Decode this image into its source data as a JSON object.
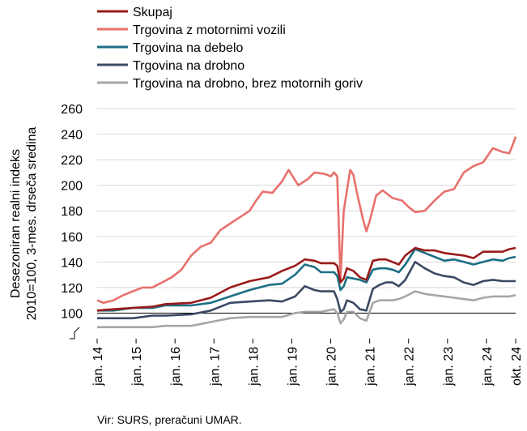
{
  "chart_data": {
    "type": "line",
    "ylabel": "Desezoniran realni indeks\n2010=100, 3-mes. drseča sredina",
    "source": "Vir: SURS, preračuni UMAR.",
    "ylim": [
      80,
      260
    ],
    "yticks": [
      100,
      120,
      140,
      160,
      180,
      200,
      220,
      240,
      260
    ],
    "y_axis_break": true,
    "x_start": "2014-01",
    "x_end": "2024-10",
    "xtick_labels": [
      "jan. 14",
      "jan. 15",
      "jan. 16",
      "jan. 17",
      "jan. 18",
      "jan. 19",
      "jan. 20",
      "jan. 21",
      "jan. 22",
      "jan. 23",
      "jan. 24",
      "okt. 24"
    ],
    "reference_line": 100,
    "grid": "horizontal",
    "legend_position": "top",
    "series": [
      {
        "name": "Skupaj",
        "color": "#9b1b1b",
        "points": [
          [
            "2014-01",
            102
          ],
          [
            "2014-06",
            103
          ],
          [
            "2014-12",
            104
          ],
          [
            "2015-06",
            105
          ],
          [
            "2015-10",
            107
          ],
          [
            "2016-06",
            108
          ],
          [
            "2016-12",
            112
          ],
          [
            "2017-06",
            120
          ],
          [
            "2017-12",
            125
          ],
          [
            "2018-06",
            128
          ],
          [
            "2018-10",
            133
          ],
          [
            "2019-02",
            137
          ],
          [
            "2019-05",
            142
          ],
          [
            "2019-08",
            141
          ],
          [
            "2019-10",
            139
          ],
          [
            "2020-02",
            139
          ],
          [
            "2020-03",
            137
          ],
          [
            "2020-04",
            124
          ],
          [
            "2020-05",
            127
          ],
          [
            "2020-06",
            135
          ],
          [
            "2020-08",
            133
          ],
          [
            "2020-10",
            128
          ],
          [
            "2020-12",
            126
          ],
          [
            "2021-02",
            141
          ],
          [
            "2021-04",
            142
          ],
          [
            "2021-06",
            142
          ],
          [
            "2021-08",
            140
          ],
          [
            "2021-10",
            138
          ],
          [
            "2021-12",
            145
          ],
          [
            "2022-03",
            151
          ],
          [
            "2022-06",
            149
          ],
          [
            "2022-09",
            149
          ],
          [
            "2022-12",
            147
          ],
          [
            "2023-03",
            146
          ],
          [
            "2023-06",
            145
          ],
          [
            "2023-09",
            143
          ],
          [
            "2023-12",
            148
          ],
          [
            "2024-03",
            148
          ],
          [
            "2024-06",
            148
          ],
          [
            "2024-08",
            150
          ],
          [
            "2024-10",
            151
          ]
        ]
      },
      {
        "name": "Trgovina z motornimi vozili",
        "color": "#e8706c",
        "points": [
          [
            "2014-01",
            110
          ],
          [
            "2014-03",
            108
          ],
          [
            "2014-06",
            110
          ],
          [
            "2014-09",
            114
          ],
          [
            "2014-12",
            117
          ],
          [
            "2015-03",
            120
          ],
          [
            "2015-06",
            120
          ],
          [
            "2015-09",
            124
          ],
          [
            "2015-12",
            128
          ],
          [
            "2016-03",
            134
          ],
          [
            "2016-06",
            145
          ],
          [
            "2016-09",
            152
          ],
          [
            "2016-12",
            155
          ],
          [
            "2017-03",
            165
          ],
          [
            "2017-06",
            170
          ],
          [
            "2017-09",
            175
          ],
          [
            "2017-12",
            180
          ],
          [
            "2018-02",
            188
          ],
          [
            "2018-04",
            195
          ],
          [
            "2018-07",
            194
          ],
          [
            "2018-10",
            203
          ],
          [
            "2018-12",
            212
          ],
          [
            "2019-03",
            200
          ],
          [
            "2019-06",
            205
          ],
          [
            "2019-08",
            210
          ],
          [
            "2019-11",
            209
          ],
          [
            "2020-01",
            207
          ],
          [
            "2020-02",
            210
          ],
          [
            "2020-03",
            207
          ],
          [
            "2020-04",
            126
          ],
          [
            "2020-05",
            180
          ],
          [
            "2020-07",
            212
          ],
          [
            "2020-08",
            208
          ],
          [
            "2020-09",
            195
          ],
          [
            "2020-11",
            173
          ],
          [
            "2020-12",
            164
          ],
          [
            "2021-01",
            172
          ],
          [
            "2021-03",
            192
          ],
          [
            "2021-05",
            196
          ],
          [
            "2021-08",
            190
          ],
          [
            "2021-11",
            188
          ],
          [
            "2022-01",
            183
          ],
          [
            "2022-03",
            179
          ],
          [
            "2022-06",
            180
          ],
          [
            "2022-09",
            188
          ],
          [
            "2022-12",
            195
          ],
          [
            "2023-03",
            197
          ],
          [
            "2023-06",
            210
          ],
          [
            "2023-09",
            215
          ],
          [
            "2023-12",
            218
          ],
          [
            "2024-03",
            229
          ],
          [
            "2024-06",
            226
          ],
          [
            "2024-08",
            225
          ],
          [
            "2024-09",
            231
          ],
          [
            "2024-10",
            238
          ]
        ]
      },
      {
        "name": "Trgovina na debelo",
        "color": "#1b6f84",
        "points": [
          [
            "2014-01",
            102
          ],
          [
            "2014-06",
            102
          ],
          [
            "2014-12",
            104
          ],
          [
            "2015-06",
            104
          ],
          [
            "2015-10",
            106
          ],
          [
            "2016-06",
            106
          ],
          [
            "2016-12",
            108
          ],
          [
            "2017-06",
            113
          ],
          [
            "2017-12",
            118
          ],
          [
            "2018-06",
            122
          ],
          [
            "2018-10",
            123
          ],
          [
            "2019-02",
            130
          ],
          [
            "2019-05",
            138
          ],
          [
            "2019-08",
            136
          ],
          [
            "2019-10",
            132
          ],
          [
            "2020-02",
            132
          ],
          [
            "2020-03",
            129
          ],
          [
            "2020-04",
            118
          ],
          [
            "2020-05",
            121
          ],
          [
            "2020-06",
            128
          ],
          [
            "2020-08",
            127
          ],
          [
            "2020-10",
            126
          ],
          [
            "2020-12",
            124
          ],
          [
            "2021-02",
            134
          ],
          [
            "2021-04",
            135
          ],
          [
            "2021-06",
            135
          ],
          [
            "2021-08",
            134
          ],
          [
            "2021-10",
            132
          ],
          [
            "2021-12",
            138
          ],
          [
            "2022-03",
            150
          ],
          [
            "2022-06",
            147
          ],
          [
            "2022-09",
            144
          ],
          [
            "2022-12",
            141
          ],
          [
            "2023-03",
            142
          ],
          [
            "2023-06",
            140
          ],
          [
            "2023-09",
            138
          ],
          [
            "2023-12",
            140
          ],
          [
            "2024-03",
            142
          ],
          [
            "2024-06",
            141
          ],
          [
            "2024-08",
            143
          ],
          [
            "2024-10",
            144
          ]
        ]
      },
      {
        "name": "Trgovina na drobno",
        "color": "#3b4a63",
        "points": [
          [
            "2014-01",
            96
          ],
          [
            "2014-06",
            96
          ],
          [
            "2014-12",
            96
          ],
          [
            "2015-06",
            98
          ],
          [
            "2015-10",
            98
          ],
          [
            "2016-06",
            99
          ],
          [
            "2016-12",
            102
          ],
          [
            "2017-06",
            108
          ],
          [
            "2017-12",
            109
          ],
          [
            "2018-06",
            110
          ],
          [
            "2018-10",
            109
          ],
          [
            "2019-02",
            113
          ],
          [
            "2019-05",
            121
          ],
          [
            "2019-08",
            118
          ],
          [
            "2019-10",
            117
          ],
          [
            "2020-02",
            117
          ],
          [
            "2020-03",
            111
          ],
          [
            "2020-04",
            101
          ],
          [
            "2020-05",
            103
          ],
          [
            "2020-06",
            110
          ],
          [
            "2020-08",
            108
          ],
          [
            "2020-10",
            103
          ],
          [
            "2020-12",
            102
          ],
          [
            "2021-02",
            119
          ],
          [
            "2021-04",
            122
          ],
          [
            "2021-06",
            124
          ],
          [
            "2021-08",
            124
          ],
          [
            "2021-10",
            121
          ],
          [
            "2021-12",
            126
          ],
          [
            "2022-03",
            140
          ],
          [
            "2022-06",
            135
          ],
          [
            "2022-09",
            131
          ],
          [
            "2022-12",
            129
          ],
          [
            "2023-03",
            128
          ],
          [
            "2023-06",
            124
          ],
          [
            "2023-09",
            122
          ],
          [
            "2023-12",
            125
          ],
          [
            "2024-03",
            126
          ],
          [
            "2024-06",
            125
          ],
          [
            "2024-08",
            125
          ],
          [
            "2024-10",
            125
          ]
        ]
      },
      {
        "name": "Trgovina na drobno, brez motornih goriv",
        "color": "#a6a6a6",
        "points": [
          [
            "2014-01",
            89
          ],
          [
            "2014-06",
            89
          ],
          [
            "2014-12",
            89
          ],
          [
            "2015-06",
            89
          ],
          [
            "2015-10",
            90
          ],
          [
            "2016-06",
            90
          ],
          [
            "2016-12",
            93
          ],
          [
            "2017-06",
            96
          ],
          [
            "2017-12",
            97
          ],
          [
            "2018-06",
            97
          ],
          [
            "2018-10",
            97
          ],
          [
            "2019-02",
            100
          ],
          [
            "2019-05",
            101
          ],
          [
            "2019-08",
            101
          ],
          [
            "2019-10",
            101
          ],
          [
            "2020-02",
            103
          ],
          [
            "2020-03",
            100
          ],
          [
            "2020-04",
            92
          ],
          [
            "2020-05",
            95
          ],
          [
            "2020-06",
            101
          ],
          [
            "2020-08",
            101
          ],
          [
            "2020-10",
            96
          ],
          [
            "2020-12",
            94
          ],
          [
            "2021-02",
            108
          ],
          [
            "2021-04",
            110
          ],
          [
            "2021-06",
            110
          ],
          [
            "2021-08",
            110
          ],
          [
            "2021-10",
            111
          ],
          [
            "2021-12",
            113
          ],
          [
            "2022-03",
            117
          ],
          [
            "2022-06",
            115
          ],
          [
            "2022-09",
            114
          ],
          [
            "2022-12",
            113
          ],
          [
            "2023-03",
            112
          ],
          [
            "2023-06",
            111
          ],
          [
            "2023-09",
            110
          ],
          [
            "2023-12",
            112
          ],
          [
            "2024-03",
            113
          ],
          [
            "2024-06",
            113
          ],
          [
            "2024-08",
            113
          ],
          [
            "2024-10",
            114
          ]
        ]
      }
    ]
  }
}
